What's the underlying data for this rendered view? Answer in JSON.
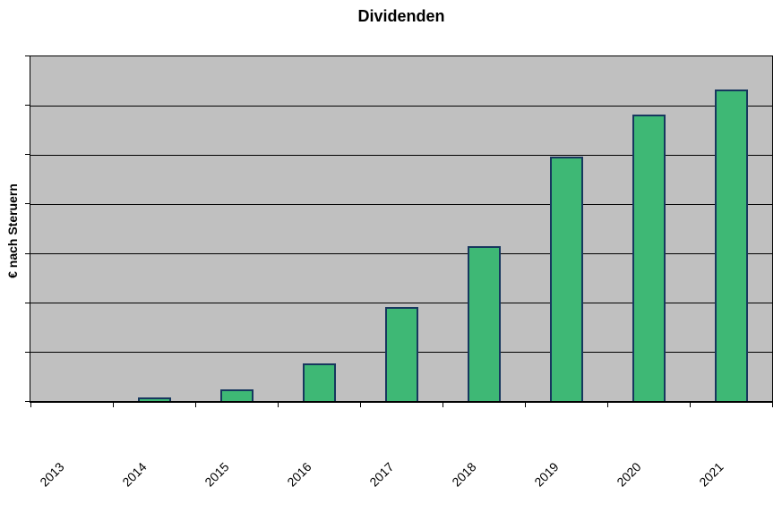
{
  "chart_data": {
    "type": "bar",
    "title": "Dividenden",
    "xlabel": "",
    "ylabel": "€ nach Steruern",
    "categories": [
      "2013",
      "2014",
      "2015",
      "2016",
      "2017",
      "2018",
      "2019",
      "2020",
      "2021"
    ],
    "values": [
      0,
      0.07,
      0.24,
      0.76,
      1.91,
      3.14,
      4.96,
      5.81,
      6.33
    ],
    "ylim": [
      0,
      7
    ],
    "y_tick_labels_visible": false,
    "value_labels_visible": false,
    "legend": "none",
    "grid": "horizontal gridlines, 6 internal lines forming 7 bands",
    "x_label_rotation_degrees": 45,
    "colors": {
      "plot_background": "#C0C0C0",
      "bar_fill": "#3EB875",
      "bar_border": "#17375E",
      "gridline": "#000000",
      "axis": "#000000",
      "text": "#000000",
      "page_background": "#FFFFFF"
    }
  }
}
